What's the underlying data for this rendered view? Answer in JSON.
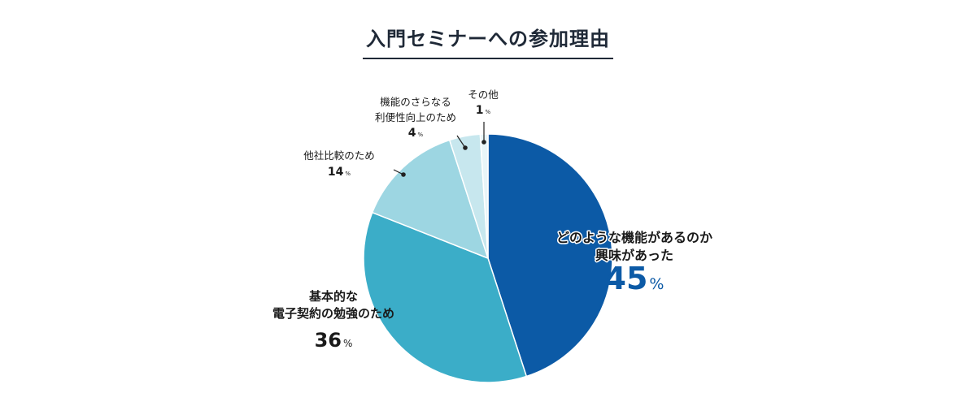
{
  "chart_data": {
    "type": "pie",
    "title": "入門セミナーへの参加理由",
    "slices": [
      {
        "label_lines": [
          "どのような機能があるのか",
          "興味があった"
        ],
        "value": 45,
        "value_text": "45",
        "unit": "%",
        "color": "#0c5aa6"
      },
      {
        "label_lines": [
          "基本的な",
          "電子契約の勉強のため"
        ],
        "value": 36,
        "value_text": "36",
        "unit": "%",
        "color": "#3badc8"
      },
      {
        "label_lines": [
          "他社比較のため"
        ],
        "value": 14,
        "value_text": "14",
        "unit": "%",
        "color": "#9dd6e2"
      },
      {
        "label_lines": [
          "機能のさらなる",
          "利便性向上のため"
        ],
        "value": 4,
        "value_text": "4",
        "unit": "%",
        "color": "#c7e7ee"
      },
      {
        "label_lines": [
          "その他"
        ],
        "value": 1,
        "value_text": "1",
        "unit": "%",
        "color": "#e8f5f8"
      }
    ]
  }
}
